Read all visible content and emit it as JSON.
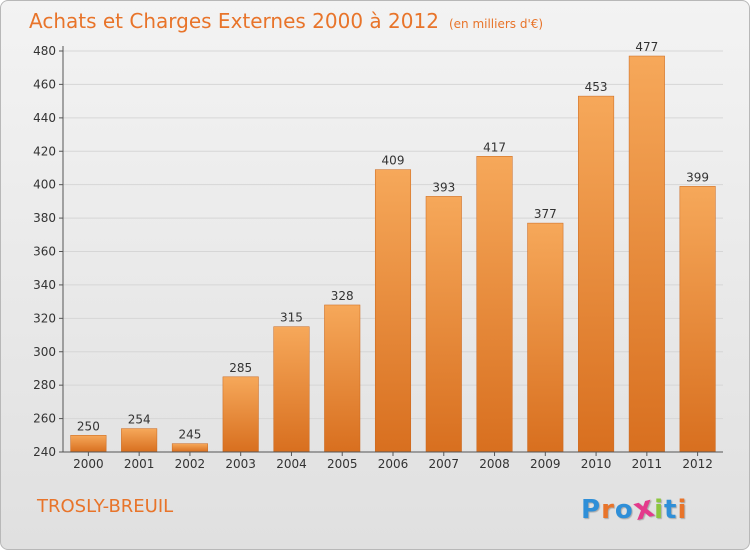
{
  "header": {
    "title": "Achats et Charges Externes 2000 à 2012",
    "unit": "(en milliers d'€)"
  },
  "footer": {
    "city": "TROSLY-BREUIL",
    "logo_letters": [
      "P",
      "r",
      "o",
      "x",
      "i",
      "t",
      "i"
    ],
    "logo_colors": [
      "#2f8fd8",
      "#e8742a",
      "#2f8fd8",
      "#e43a8c",
      "#8cc63f",
      "#2f8fd8",
      "#e8742a"
    ]
  },
  "colors": {
    "bar_light": "#f6a85a",
    "bar_dark": "#d86f1f",
    "accent": "#e8742a",
    "grid": "#d6d6d6"
  },
  "chart_data": {
    "type": "bar",
    "title": "Achats et Charges Externes 2000 à 2012",
    "subtitle": "(en milliers d'€)",
    "categories": [
      "2000",
      "2001",
      "2002",
      "2003",
      "2004",
      "2005",
      "2006",
      "2007",
      "2008",
      "2009",
      "2010",
      "2011",
      "2012"
    ],
    "values": [
      250,
      254,
      245,
      285,
      315,
      328,
      409,
      393,
      417,
      377,
      453,
      477,
      399
    ],
    "ylim": [
      240,
      480
    ],
    "yticks": [
      240,
      260,
      280,
      300,
      320,
      340,
      360,
      380,
      400,
      420,
      440,
      460,
      480
    ],
    "grid": true
  }
}
